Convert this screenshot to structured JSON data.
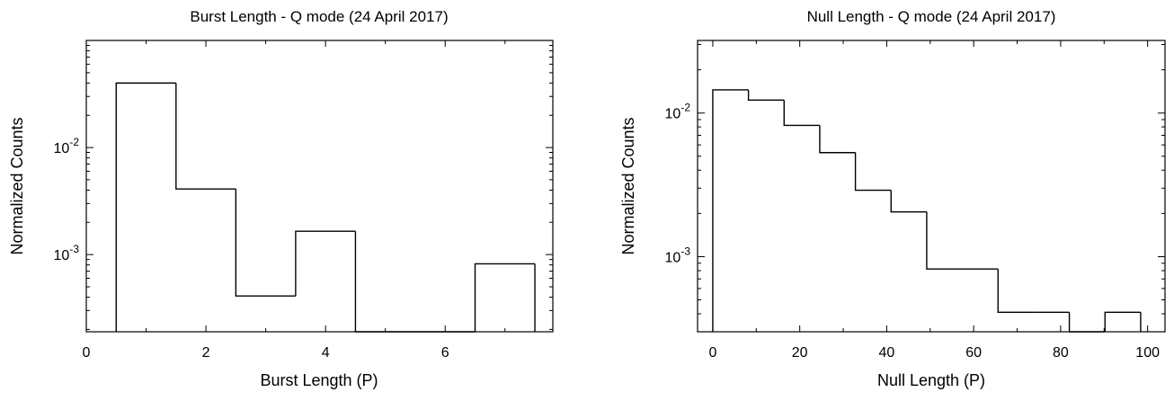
{
  "chart_data": [
    {
      "type": "histogram",
      "title": "Burst Length - Q mode (24 April 2017)",
      "xlabel": "Burst Length (P)",
      "ylabel": "Normalized Counts",
      "x_ticks": [
        "0",
        "2",
        "4",
        "6"
      ],
      "y_ticks": [
        {
          "base": "10",
          "exp": "-2",
          "value": 0.01
        },
        {
          "base": "10",
          "exp": "-3",
          "value": 0.001
        }
      ],
      "yscale": "log",
      "xlim": [
        0,
        7.8
      ],
      "ylim": [
        0.00019,
        0.1
      ],
      "bins": [
        {
          "x0": 0.5,
          "x1": 1.5,
          "value": 0.04
        },
        {
          "x0": 1.5,
          "x1": 2.5,
          "value": 0.0041
        },
        {
          "x0": 2.5,
          "x1": 3.5,
          "value": 0.00041
        },
        {
          "x0": 3.5,
          "x1": 4.5,
          "value": 0.00165
        },
        {
          "x0": 4.5,
          "x1": 5.5,
          "value": 0
        },
        {
          "x0": 5.5,
          "x1": 6.5,
          "value": 0
        },
        {
          "x0": 6.5,
          "x1": 7.5,
          "value": 0.00082
        }
      ]
    },
    {
      "type": "histogram",
      "title": "Null Length - Q mode (24 April 2017)",
      "xlabel": "Null Length (P)",
      "ylabel": "Normalized Counts",
      "x_ticks": [
        "0",
        "20",
        "40",
        "60",
        "80",
        "100"
      ],
      "y_ticks": [
        {
          "base": "10",
          "exp": "-2",
          "value": 0.01
        },
        {
          "base": "10",
          "exp": "-3",
          "value": 0.001
        }
      ],
      "yscale": "log",
      "xlim": [
        -3.5,
        104
      ],
      "ylim": [
        0.0003,
        0.032
      ],
      "bins": [
        {
          "x0": 0,
          "x1": 8.2,
          "value": 0.0145
        },
        {
          "x0": 8.2,
          "x1": 16.4,
          "value": 0.0123
        },
        {
          "x0": 16.4,
          "x1": 24.6,
          "value": 0.0082
        },
        {
          "x0": 24.6,
          "x1": 32.8,
          "value": 0.0053
        },
        {
          "x0": 32.8,
          "x1": 41,
          "value": 0.0029
        },
        {
          "x0": 41,
          "x1": 49.2,
          "value": 0.00205
        },
        {
          "x0": 49.2,
          "x1": 57.4,
          "value": 0.00082
        },
        {
          "x0": 57.4,
          "x1": 65.6,
          "value": 0.00082
        },
        {
          "x0": 65.6,
          "x1": 73.8,
          "value": 0.00041
        },
        {
          "x0": 73.8,
          "x1": 82,
          "value": 0.00041
        },
        {
          "x0": 82,
          "x1": 90.2,
          "value": 0
        },
        {
          "x0": 90.2,
          "x1": 98.4,
          "value": 0.00041
        }
      ]
    }
  ]
}
